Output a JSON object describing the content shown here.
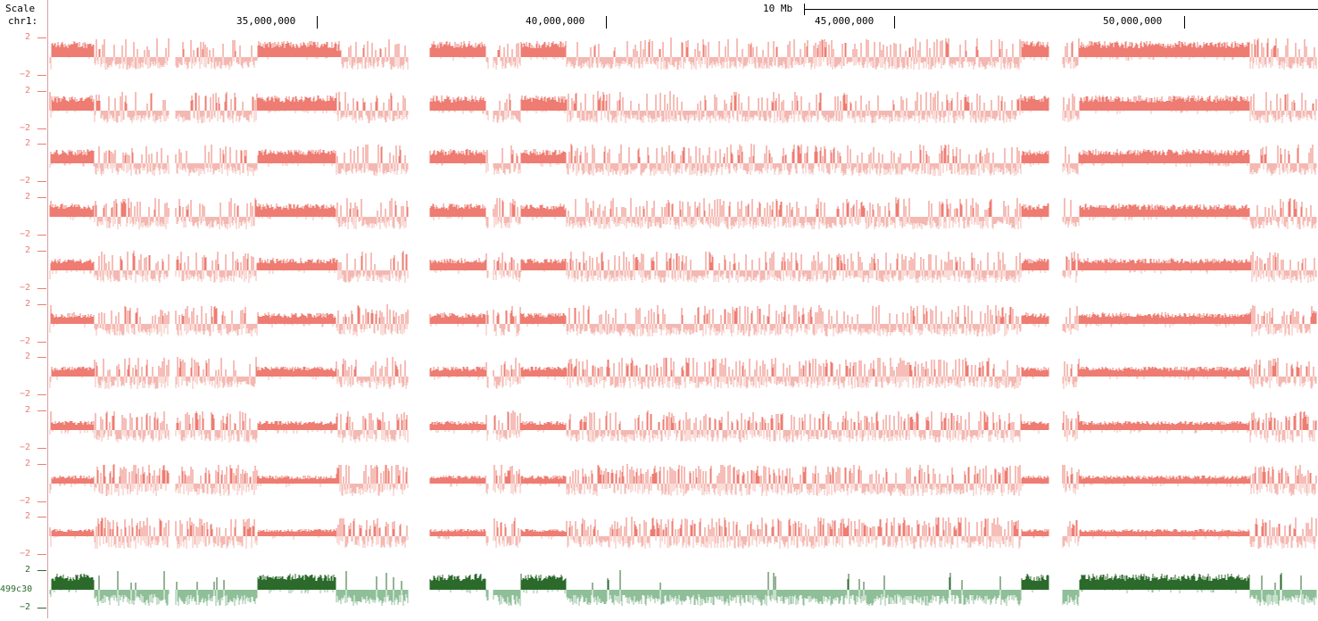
{
  "ruler": {
    "scale_label": "Scale",
    "chrom_label": "chr1:",
    "scale_bar_label": "10 Mb",
    "positions": [
      "35,000,000",
      "40,000,000",
      "45,000,000",
      "50,000,000"
    ]
  },
  "tracks": {
    "y_max_label": "2",
    "y_min_label": "−2",
    "sample_label": "499c30",
    "colors": {
      "red_pos": "#ee7c72",
      "red_neg": "#f4b8b2",
      "green_pos": "#2b6a2b",
      "green_neg": "#8fbf98"
    },
    "count": 11
  }
}
